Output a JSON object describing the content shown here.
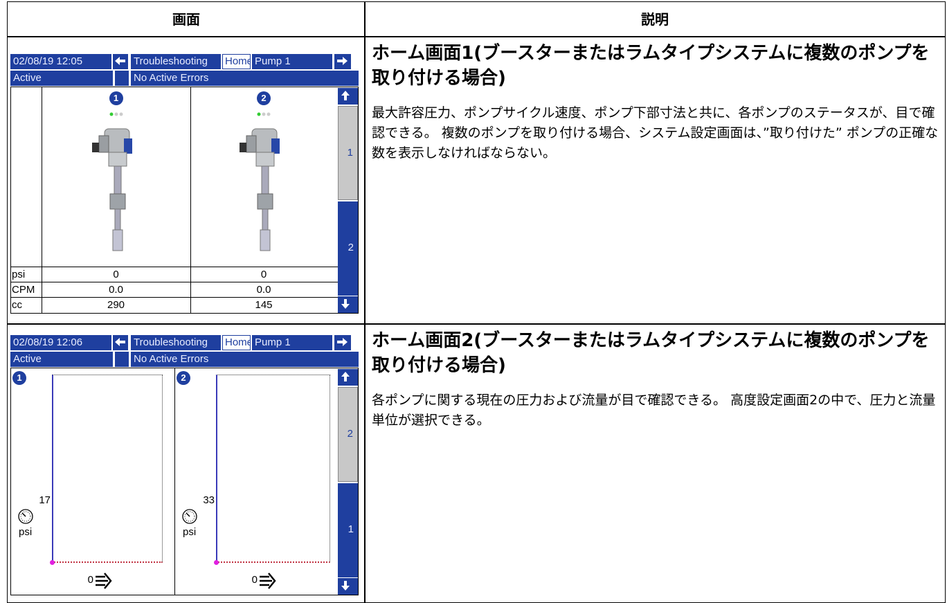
{
  "table": {
    "headers": [
      "画面",
      "説明"
    ],
    "rows": [
      {
        "screen": {
          "datetime": "02/08/19 12:05",
          "tabs": [
            "Troubleshooting",
            "Home",
            "Pump 1"
          ],
          "status": "Active",
          "errors": "No Active Errors",
          "pumps": [
            "1",
            "2"
          ],
          "scroll": [
            "1",
            "2"
          ],
          "row_labels": [
            "psi",
            "CPM",
            "cc"
          ],
          "pump_values": [
            [
              "0",
              "0.0",
              "290"
            ],
            [
              "0",
              "0.0",
              "145"
            ]
          ]
        },
        "title": "ホーム画面1(ブースターまたはラムタイプシステムに複数のポンプを取り付ける場合)",
        "description": "最大許容圧力、ポンプサイクル速度、ポンプ下部寸法と共に、各ポンプのステータスが、目で確認できる。 複数のポンプを取り付ける場合、システム設定画面は、”取り付けた” ポンプの正確な数を表示しなければならない。"
      },
      {
        "screen": {
          "datetime": "02/08/19 12:06",
          "tabs": [
            "Troubleshooting",
            "Home",
            "Pump 1"
          ],
          "status": "Active",
          "errors": "No Active Errors",
          "pumps": [
            "1",
            "2"
          ],
          "scroll": [
            "2",
            "1"
          ],
          "pressures": [
            "17",
            "33"
          ],
          "pressure_units": [
            "psi",
            "psi"
          ],
          "flows": [
            "0",
            "0"
          ]
        },
        "title": "ホーム画面2(ブースターまたはラムタイプシステムに複数のポンプを取り付ける場合)",
        "description": "各ポンプに関する現在の圧力および流量が目で確認できる。 高度設定画面2の中で、圧力と流量単位が選択できる。"
      }
    ]
  }
}
